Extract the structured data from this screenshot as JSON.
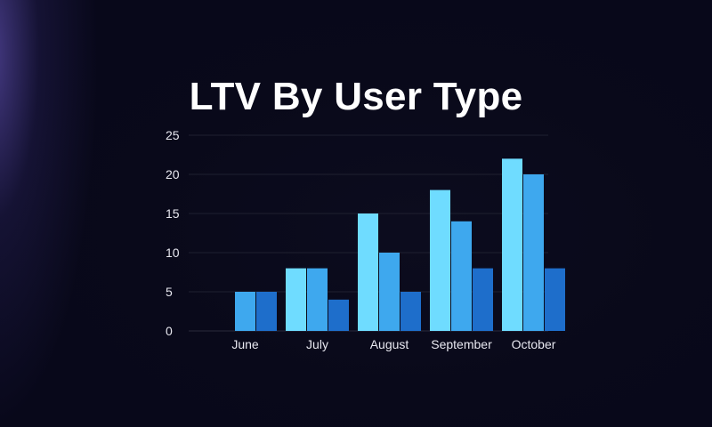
{
  "chart_data": {
    "type": "bar",
    "title": "LTV By User Type",
    "categories": [
      "June",
      "July",
      "August",
      "September",
      "October"
    ],
    "series": [
      {
        "values": [
          0,
          8,
          15,
          18,
          22
        ],
        "color": "#6fdcff"
      },
      {
        "values": [
          5,
          8,
          10,
          14,
          20
        ],
        "color": "#3ea8ee"
      },
      {
        "values": [
          5,
          4,
          5,
          8,
          8
        ],
        "color": "#1e6ecb"
      }
    ],
    "yticks": [
      0,
      5,
      10,
      15,
      20,
      25
    ],
    "ylim": [
      0,
      25
    ],
    "grid": true,
    "xlabel": "",
    "ylabel": ""
  }
}
